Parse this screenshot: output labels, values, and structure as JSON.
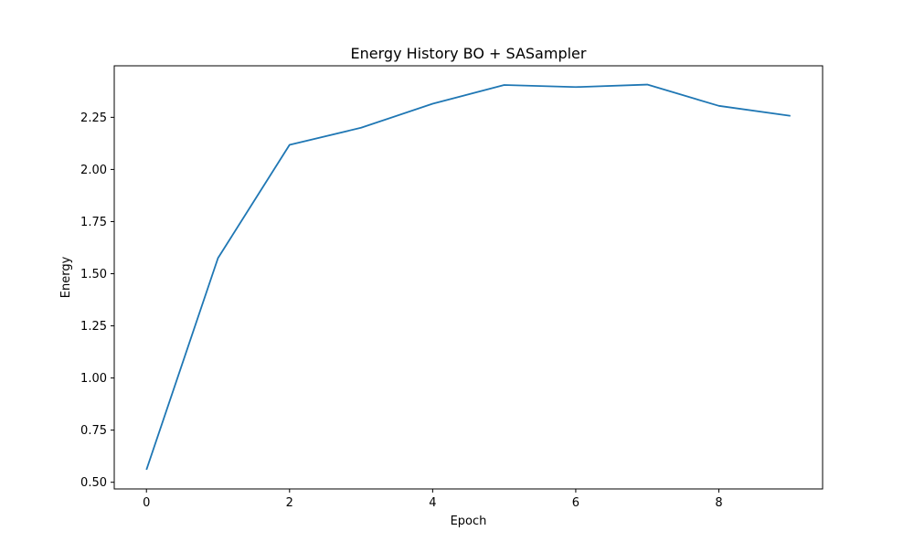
{
  "chart_data": {
    "type": "line",
    "title": "Energy History BO + SASampler",
    "xlabel": "Epoch",
    "ylabel": "Energy",
    "xlim": [
      -0.45,
      9.45
    ],
    "ylim": [
      0.468,
      2.497
    ],
    "x_ticks": [
      0,
      2,
      4,
      6,
      8
    ],
    "y_ticks": [
      0.5,
      0.75,
      1.0,
      1.25,
      1.5,
      1.75,
      2.0,
      2.25
    ],
    "y_tick_labels": [
      "0.50",
      "0.75",
      "1.00",
      "1.25",
      "1.50",
      "1.75",
      "2.00",
      "2.25"
    ],
    "grid": false,
    "legend": "none",
    "series": [
      {
        "color": "#1f77b4",
        "x": [
          0,
          1,
          2,
          3,
          4,
          5,
          6,
          7,
          8,
          9
        ],
        "y": [
          0.56,
          1.575,
          2.118,
          2.2,
          2.315,
          2.405,
          2.395,
          2.407,
          2.305,
          2.257
        ]
      }
    ]
  }
}
